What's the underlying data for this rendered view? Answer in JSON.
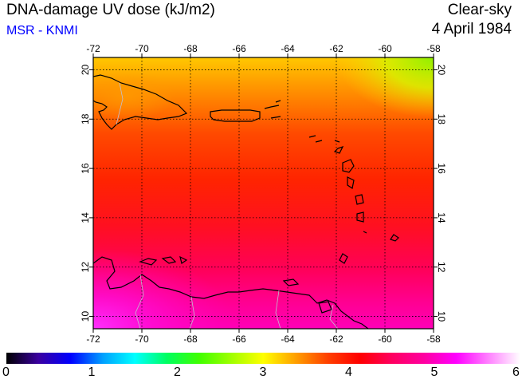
{
  "header": {
    "title": "DNA-damage UV dose (kJ/m2)",
    "source": "MSR - KNMI",
    "sky_condition": "Clear-sky",
    "date": "4 April 1984"
  },
  "map": {
    "lon_range": [
      -72,
      -58
    ],
    "lat_range": [
      9.5,
      20.5
    ],
    "lon_ticks": [
      "-72",
      "-70",
      "-68",
      "-66",
      "-64",
      "-62",
      "-60",
      "-58"
    ],
    "lat_ticks": [
      "10",
      "12",
      "14",
      "16",
      "18",
      "20"
    ],
    "grid": true
  },
  "colorbar": {
    "range": [
      0,
      6
    ],
    "labels": [
      "0",
      "1",
      "2",
      "3",
      "4",
      "5",
      "6"
    ],
    "colors": [
      "#000000",
      "#3a00a0",
      "#0000ff",
      "#00a0ff",
      "#00ffff",
      "#00ff60",
      "#40ff00",
      "#a0ff00",
      "#ffff00",
      "#ffa000",
      "#ff4000",
      "#ff0000",
      "#ff0060",
      "#ff00a0",
      "#ff00ff",
      "#ff80ff",
      "#ffffff"
    ]
  }
}
